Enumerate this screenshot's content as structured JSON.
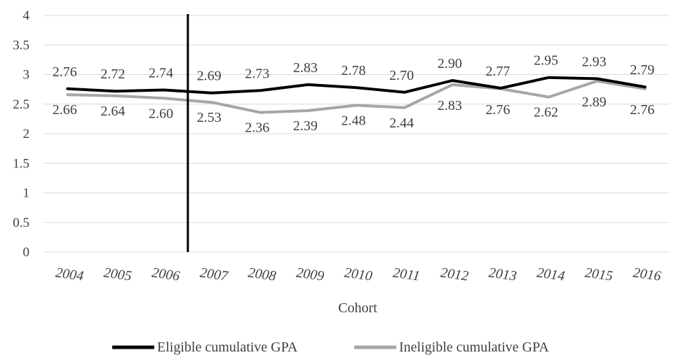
{
  "chart_data": {
    "type": "line",
    "title": "",
    "xlabel": "Cohort",
    "ylabel": "",
    "categories": [
      "2004",
      "2005",
      "2006",
      "2007",
      "2008",
      "2009",
      "2010",
      "2011",
      "2012",
      "2013",
      "2014",
      "2015",
      "2016"
    ],
    "ylim": [
      0,
      4
    ],
    "yticks": [
      "0",
      "0.5",
      "1",
      "1.5",
      "2",
      "2.5",
      "3",
      "3.5",
      "4"
    ],
    "grid": true,
    "legend_position": "bottom",
    "series": [
      {
        "name": "Eligible cumulative GPA",
        "color": "#000000",
        "values": [
          2.76,
          2.72,
          2.74,
          2.69,
          2.73,
          2.83,
          2.78,
          2.7,
          2.9,
          2.77,
          2.95,
          2.93,
          2.79
        ],
        "labels": [
          "2.76",
          "2.72",
          "2.74",
          "2.69",
          "2.73",
          "2.83",
          "2.78",
          "2.70",
          "2.90",
          "2.77",
          "2.95",
          "2.93",
          "2.79"
        ]
      },
      {
        "name": "Ineligible cumulative GPA",
        "color": "#a6a6a6",
        "values": [
          2.66,
          2.64,
          2.6,
          2.53,
          2.36,
          2.39,
          2.48,
          2.44,
          2.83,
          2.76,
          2.62,
          2.89,
          2.76
        ],
        "labels": [
          "2.66",
          "2.64",
          "2.60",
          "2.53",
          "2.36",
          "2.39",
          "2.48",
          "2.44",
          "2.83",
          "2.76",
          "2.62",
          "2.89",
          "2.76"
        ]
      }
    ],
    "annotations": [
      {
        "type": "vertical-line",
        "between": [
          "2006",
          "2007"
        ],
        "color": "#000000"
      }
    ]
  }
}
